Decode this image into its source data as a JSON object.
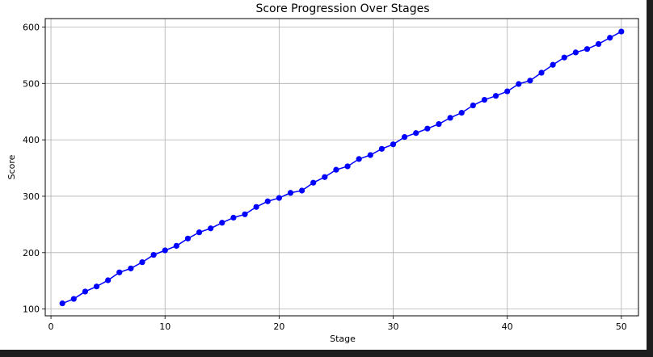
{
  "chart_data": {
    "type": "line",
    "title": "Score Progression Over Stages",
    "xlabel": "Stage",
    "ylabel": "Score",
    "xlim": [
      -0.5,
      51.5
    ],
    "ylim": [
      88,
      615
    ],
    "xticks": [
      0,
      10,
      20,
      30,
      40,
      50
    ],
    "yticks": [
      100,
      200,
      300,
      400,
      500,
      600
    ],
    "grid": true,
    "line_color": "#0000ff",
    "marker": "circle",
    "x": [
      1,
      2,
      3,
      4,
      5,
      6,
      7,
      8,
      9,
      10,
      11,
      12,
      13,
      14,
      15,
      16,
      17,
      18,
      19,
      20,
      21,
      22,
      23,
      24,
      25,
      26,
      27,
      28,
      29,
      30,
      31,
      32,
      33,
      34,
      35,
      36,
      37,
      38,
      39,
      40,
      41,
      42,
      43,
      44,
      45,
      46,
      47,
      48,
      49,
      50
    ],
    "y": [
      110,
      118,
      131,
      140,
      151,
      165,
      172,
      183,
      196,
      204,
      212,
      225,
      236,
      243,
      253,
      262,
      268,
      281,
      291,
      297,
      306,
      310,
      324,
      334,
      347,
      353,
      366,
      373,
      384,
      392,
      405,
      412,
      420,
      428,
      439,
      448,
      461,
      471,
      478,
      486,
      499,
      505,
      519,
      533,
      546,
      555,
      561,
      570,
      581,
      592
    ]
  }
}
